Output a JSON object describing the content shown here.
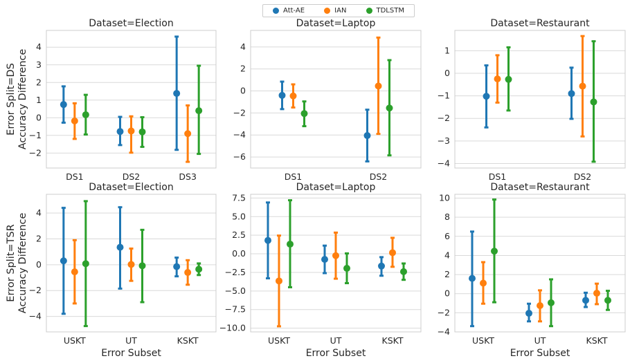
{
  "legend": {
    "items": [
      {
        "label": "Att-AE",
        "color": "#1f77b4"
      },
      {
        "label": "IAN",
        "color": "#ff7f0e"
      },
      {
        "label": "TDLSTM",
        "color": "#2ca02c"
      }
    ]
  },
  "row_labels": [
    "Error Split=DS\nAccuracy Difference",
    "Error Split=TSR\nAccuracy Difference"
  ],
  "xlabel": "Error Subset",
  "chart_data": [
    {
      "type": "pointplot-errorbar",
      "title": "Dataset=Election",
      "categories": [
        "DS1",
        "DS2",
        "DS3"
      ],
      "ylim": [
        -2.85,
        4.95
      ],
      "yticks": [
        -2,
        -1,
        0,
        1,
        2,
        3,
        4
      ],
      "ytick_labels": [
        "−2",
        "−1",
        "0",
        "1",
        "2",
        "3",
        "4"
      ],
      "series": [
        {
          "name": "Att-AE",
          "color": "#1f77b4",
          "values": [
            0.75,
            -0.78,
            1.38
          ],
          "lower": [
            -0.28,
            -1.55,
            -1.82
          ],
          "upper": [
            1.78,
            0.05,
            4.6
          ]
        },
        {
          "name": "IAN",
          "color": "#ff7f0e",
          "values": [
            -0.18,
            -0.75,
            -0.9
          ],
          "lower": [
            -1.2,
            -1.98,
            -2.5
          ],
          "upper": [
            0.82,
            0.08,
            0.7
          ]
        },
        {
          "name": "TDLSTM",
          "color": "#2ca02c",
          "values": [
            0.17,
            -0.8,
            0.4
          ],
          "lower": [
            -0.95,
            -1.65,
            -2.05
          ],
          "upper": [
            1.3,
            0.03,
            2.95
          ]
        }
      ]
    },
    {
      "type": "pointplot-errorbar",
      "title": "Dataset=Laptop",
      "categories": [
        "DS1",
        "DS2"
      ],
      "ylim": [
        -7.0,
        5.5
      ],
      "yticks": [
        -6,
        -4,
        -2,
        0,
        2,
        4
      ],
      "ytick_labels": [
        "−6",
        "−4",
        "−2",
        "0",
        "2",
        "4"
      ],
      "series": [
        {
          "name": "Att-AE",
          "color": "#1f77b4",
          "values": [
            -0.4,
            -4.05
          ],
          "lower": [
            -1.65,
            -6.4
          ],
          "upper": [
            0.85,
            -1.7
          ]
        },
        {
          "name": "IAN",
          "color": "#ff7f0e",
          "values": [
            -0.45,
            0.45
          ],
          "lower": [
            -1.5,
            -3.9
          ],
          "upper": [
            0.6,
            4.85
          ]
        },
        {
          "name": "TDLSTM",
          "color": "#2ca02c",
          "values": [
            -2.05,
            -1.55
          ],
          "lower": [
            -3.2,
            -5.85
          ],
          "upper": [
            -0.95,
            2.8
          ]
        }
      ]
    },
    {
      "type": "pointplot-errorbar",
      "title": "Dataset=Restaurant",
      "categories": [
        "DS1",
        "DS2"
      ],
      "ylim": [
        -4.2,
        1.9
      ],
      "yticks": [
        -4,
        -3,
        -2,
        -1,
        0,
        1
      ],
      "ytick_labels": [
        "−4",
        "−3",
        "−2",
        "−1",
        "0",
        "1"
      ],
      "series": [
        {
          "name": "Att-AE",
          "color": "#1f77b4",
          "values": [
            -1.02,
            -0.9
          ],
          "lower": [
            -2.4,
            -2.02
          ],
          "upper": [
            0.35,
            0.25
          ]
        },
        {
          "name": "IAN",
          "color": "#ff7f0e",
          "values": [
            -0.25,
            -0.57
          ],
          "lower": [
            -1.3,
            -2.8
          ],
          "upper": [
            0.8,
            1.65
          ]
        },
        {
          "name": "TDLSTM",
          "color": "#2ca02c",
          "values": [
            -0.27,
            -1.27
          ],
          "lower": [
            -1.65,
            -3.92
          ],
          "upper": [
            1.15,
            1.42
          ]
        }
      ]
    },
    {
      "type": "pointplot-errorbar",
      "title": "Dataset=Election",
      "categories": [
        "USKT",
        "UT",
        "KSKT"
      ],
      "ylim": [
        -5.2,
        5.45
      ],
      "yticks": [
        -4,
        -2,
        0,
        2,
        4
      ],
      "ytick_labels": [
        "−4",
        "−2",
        "0",
        "2",
        "4"
      ],
      "series": [
        {
          "name": "Att-AE",
          "color": "#1f77b4",
          "values": [
            0.3,
            1.35,
            -0.15
          ],
          "lower": [
            -3.8,
            -1.85,
            -0.9
          ],
          "upper": [
            4.4,
            4.45,
            0.55
          ]
        },
        {
          "name": "IAN",
          "color": "#ff7f0e",
          "values": [
            -0.55,
            0.02,
            -0.6
          ],
          "lower": [
            -3.0,
            -1.25,
            -1.55
          ],
          "upper": [
            1.9,
            1.25,
            0.35
          ]
        },
        {
          "name": "TDLSTM",
          "color": "#2ca02c",
          "values": [
            0.08,
            -0.08,
            -0.35
          ],
          "lower": [
            -4.75,
            -2.9,
            -0.8
          ],
          "upper": [
            4.92,
            2.7,
            0.1
          ]
        }
      ]
    },
    {
      "type": "pointplot-errorbar",
      "title": "Dataset=Laptop",
      "categories": [
        "USKT",
        "UT",
        "KSKT"
      ],
      "ylim": [
        -10.5,
        8.0
      ],
      "yticks": [
        -10.0,
        -7.5,
        -5.0,
        -2.5,
        0.0,
        2.5,
        5.0,
        7.5
      ],
      "ytick_labels": [
        "−10.0",
        "−7.5",
        "−5.0",
        "−2.5",
        "0.0",
        "2.5",
        "5.0",
        "7.5"
      ],
      "series": [
        {
          "name": "Att-AE",
          "color": "#1f77b4",
          "values": [
            1.8,
            -0.75,
            -1.65
          ],
          "lower": [
            -3.3,
            -2.6,
            -2.95
          ],
          "upper": [
            6.9,
            1.1,
            -0.45
          ]
        },
        {
          "name": "IAN",
          "color": "#ff7f0e",
          "values": [
            -3.65,
            -0.25,
            0.15
          ],
          "lower": [
            -9.75,
            -3.35,
            -1.75
          ],
          "upper": [
            2.45,
            2.85,
            2.15
          ]
        },
        {
          "name": "TDLSTM",
          "color": "#2ca02c",
          "values": [
            1.3,
            -1.95,
            -2.4
          ],
          "lower": [
            -4.5,
            -3.95,
            -3.5
          ],
          "upper": [
            7.2,
            0.05,
            -1.3
          ]
        }
      ]
    },
    {
      "type": "pointplot-errorbar",
      "title": "Dataset=Restaurant",
      "categories": [
        "USKT",
        "UT",
        "KSKT"
      ],
      "ylim": [
        -4.0,
        10.4
      ],
      "yticks": [
        -4,
        -2,
        0,
        2,
        4,
        6,
        8,
        10
      ],
      "ytick_labels": [
        "−4",
        "−2",
        "0",
        "2",
        "4",
        "6",
        "8",
        "10"
      ],
      "series": [
        {
          "name": "Att-AE",
          "color": "#1f77b4",
          "values": [
            1.6,
            -2.05,
            -0.7
          ],
          "lower": [
            -3.4,
            -2.9,
            -1.4
          ],
          "upper": [
            6.5,
            -1.05,
            0.1
          ]
        },
        {
          "name": "IAN",
          "color": "#ff7f0e",
          "values": [
            1.1,
            -1.25,
            0.05
          ],
          "lower": [
            -1.05,
            -2.9,
            -1.1
          ],
          "upper": [
            3.3,
            0.35,
            1.05
          ]
        },
        {
          "name": "TDLSTM",
          "color": "#2ca02c",
          "values": [
            4.45,
            -0.95,
            -0.7
          ],
          "lower": [
            -0.9,
            -3.4,
            -1.7
          ],
          "upper": [
            9.85,
            1.5,
            0.3
          ]
        }
      ]
    }
  ]
}
